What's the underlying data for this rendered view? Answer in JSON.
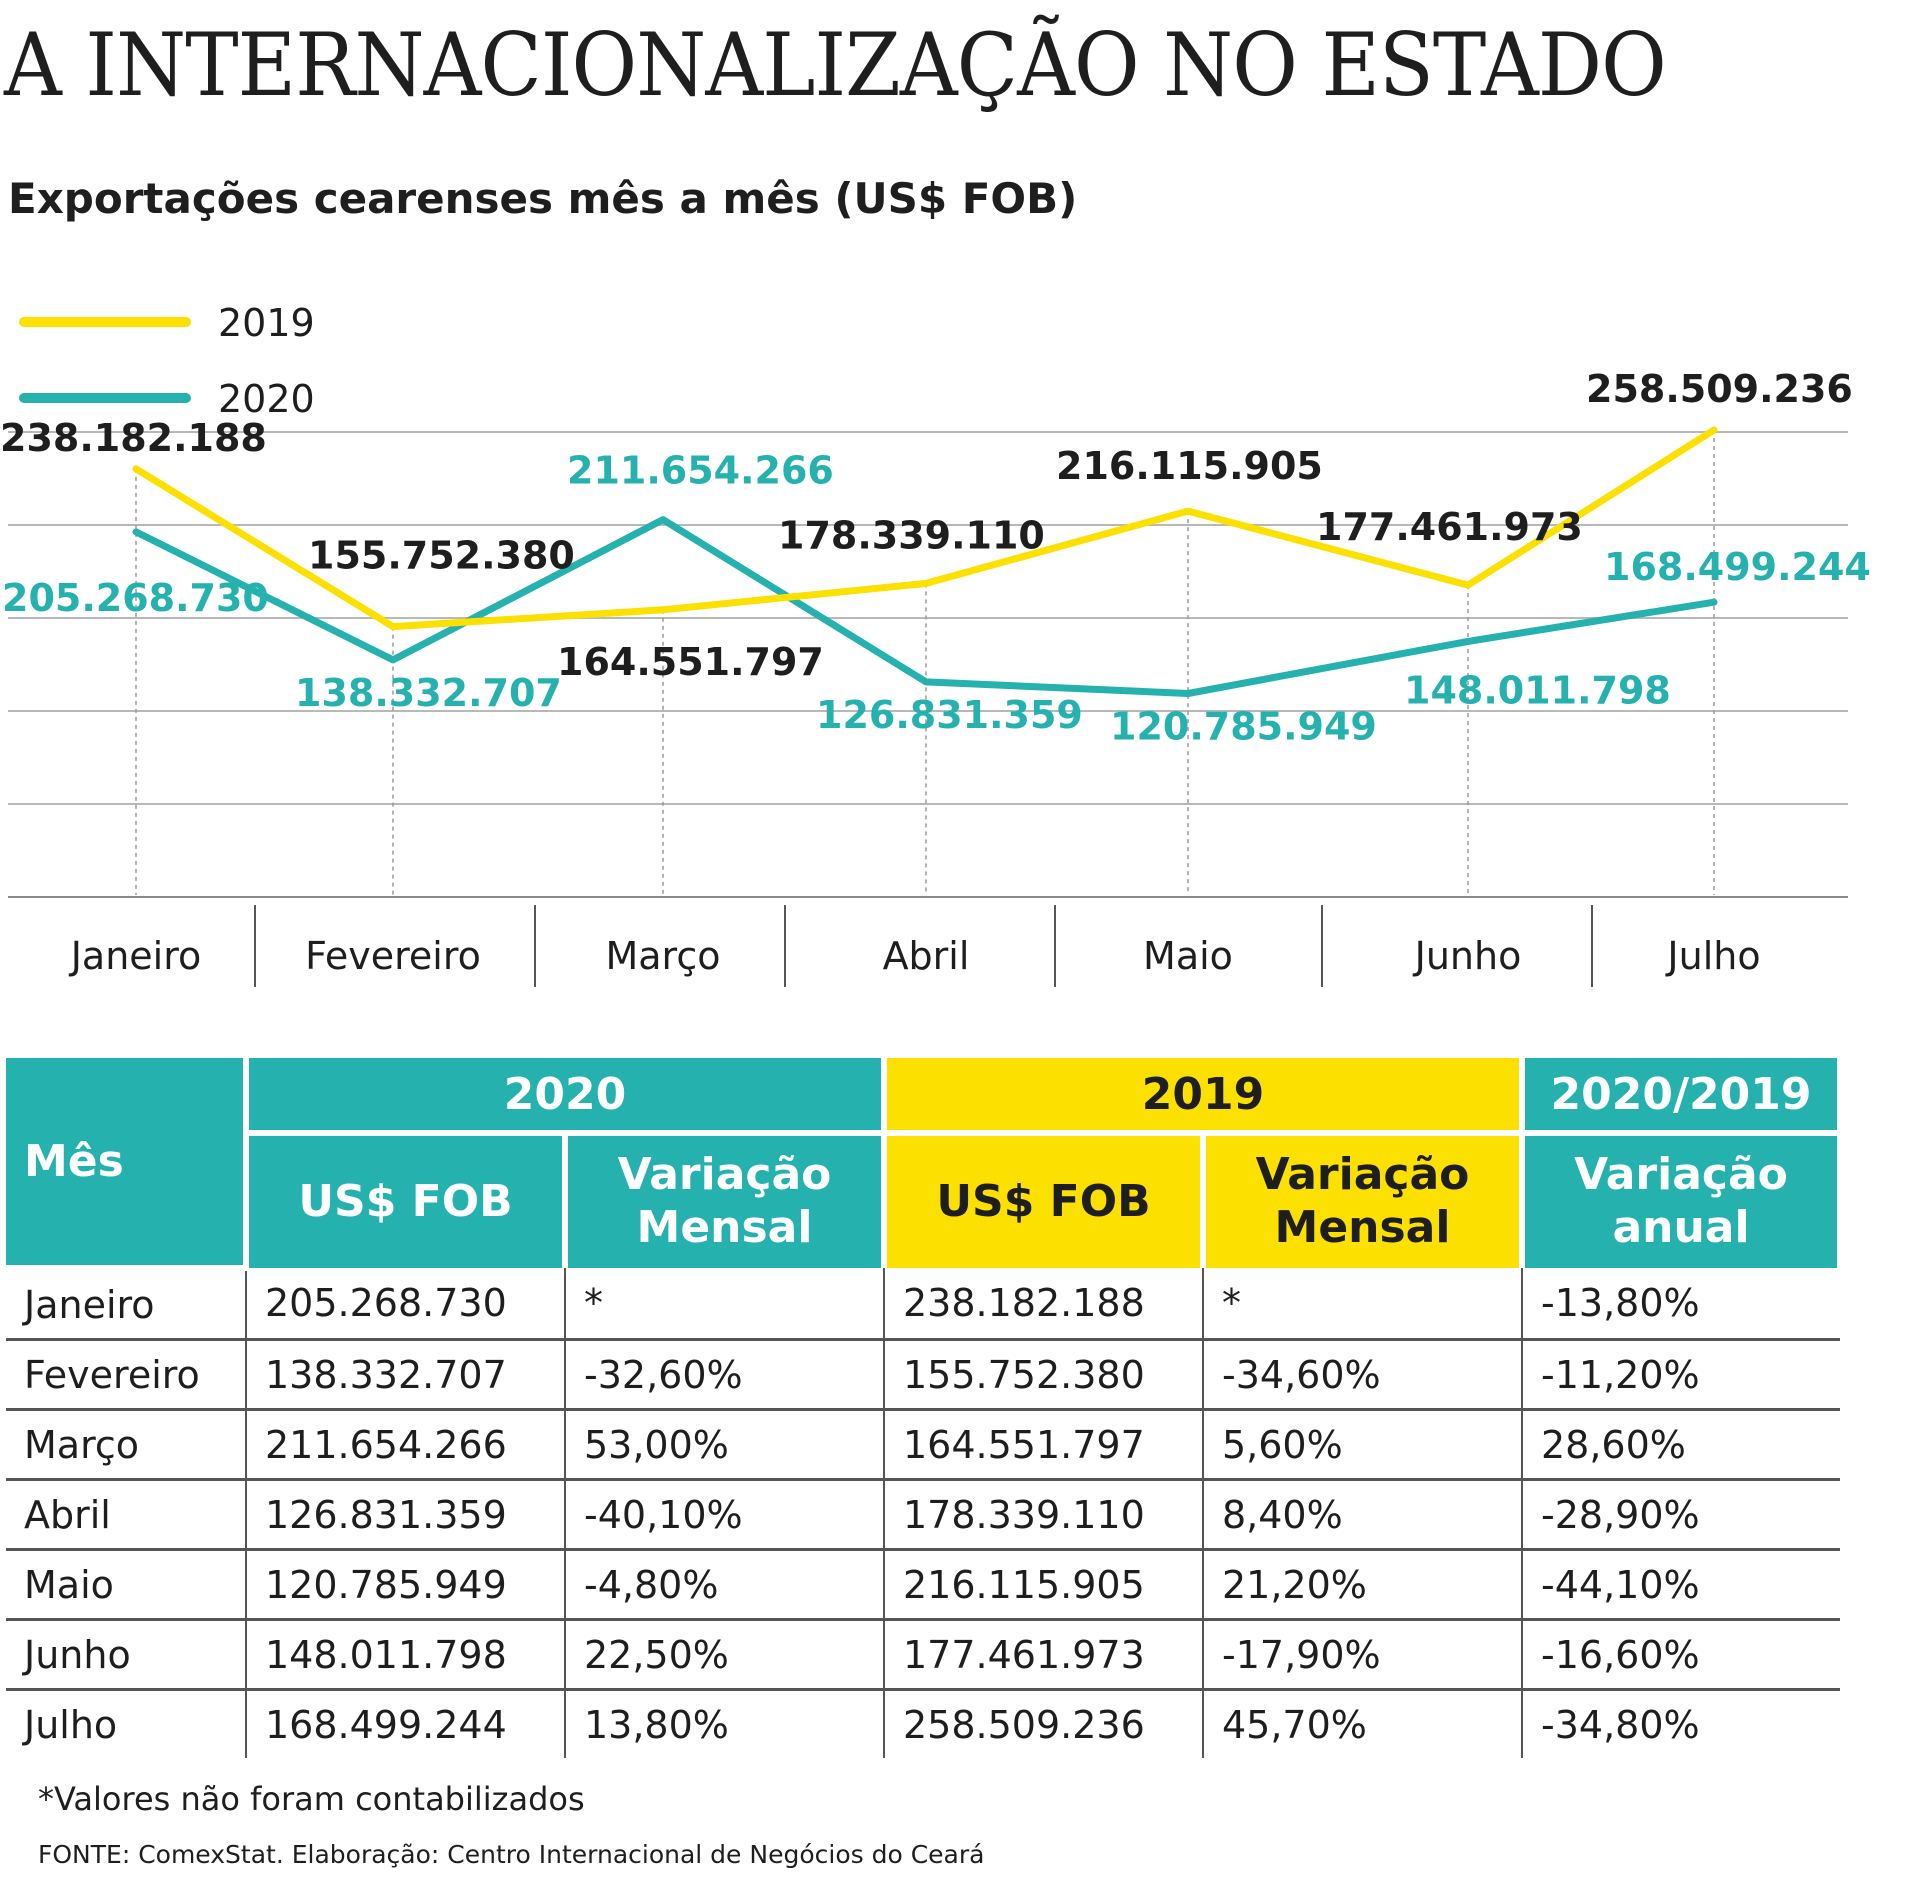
{
  "headline": "A INTERNACIONALIZAÇÃO NO ESTADO",
  "colors": {
    "y2019": "#fbe000",
    "y2020": "#25b1ad",
    "text": "#1e1e1e"
  },
  "chart_data": {
    "type": "line",
    "title": "Exportações cearenses mês a mês (US$ FOB)",
    "categories": [
      "Janeiro",
      "Fevereiro",
      "Março",
      "Abril",
      "Maio",
      "Junho",
      "Julho"
    ],
    "series": [
      {
        "name": "2019",
        "color": "#fbe000",
        "values": [
          238182188,
          155752380,
          164551797,
          178339110,
          216115905,
          177461973,
          258509236
        ],
        "labels": [
          "238.182.188",
          "155.752.380",
          "164.551.797",
          "178.339.110",
          "216.115.905",
          "177.461.973",
          "258.509.236"
        ]
      },
      {
        "name": "2020",
        "color": "#25b1ad",
        "values": [
          205268730,
          138332707,
          211654266,
          126831359,
          120785949,
          148011798,
          168499244
        ],
        "labels": [
          "205.268.730",
          "138.332.707",
          "211.654.266",
          "126.831.359",
          "120.785.949",
          "148.011.798",
          "168.499.244"
        ]
      }
    ],
    "ylim": [
      100000000,
      275000000
    ],
    "grid": true,
    "legend": "top-left",
    "xlabel": "",
    "ylabel": ""
  },
  "table": {
    "header": {
      "mes": "Mês",
      "group_2020": "2020",
      "group_2019": "2019",
      "group_ratio": "2020/2019",
      "usd_fob_2020": "US$ FOB",
      "var_mensal_2020": "Variação Mensal",
      "usd_fob_2019": "US$ FOB",
      "var_mensal_2019": "Variação Mensal",
      "var_anual": "Variação anual"
    },
    "rows": [
      {
        "mes": "Janeiro",
        "fob_2020": "205.268.730",
        "var_2020": "*",
        "fob_2019": "238.182.188",
        "var_2019": "*",
        "anual": "-13,80%"
      },
      {
        "mes": "Fevereiro",
        "fob_2020": "138.332.707",
        "var_2020": "-32,60%",
        "fob_2019": "155.752.380",
        "var_2019": "-34,60%",
        "anual": "-11,20%"
      },
      {
        "mes": "Março",
        "fob_2020": "211.654.266",
        "var_2020": "53,00%",
        "fob_2019": "164.551.797",
        "var_2019": "5,60%",
        "anual": "28,60%"
      },
      {
        "mes": "Abril",
        "fob_2020": "126.831.359",
        "var_2020": "-40,10%",
        "fob_2019": "178.339.110",
        "var_2019": "8,40%",
        "anual": "-28,90%"
      },
      {
        "mes": "Maio",
        "fob_2020": "120.785.949",
        "var_2020": "-4,80%",
        "fob_2019": "216.115.905",
        "var_2019": "21,20%",
        "anual": "-44,10%"
      },
      {
        "mes": "Junho",
        "fob_2020": "148.011.798",
        "var_2020": "22,50%",
        "fob_2019": "177.461.973",
        "var_2019": "-17,90%",
        "anual": "-16,60%"
      },
      {
        "mes": "Julho",
        "fob_2020": "168.499.244",
        "var_2020": "13,80%",
        "fob_2019": "258.509.236",
        "var_2019": "45,70%",
        "anual": "-34,80%"
      }
    ]
  },
  "footnote": "*Valores não foram contabilizados",
  "source": "FONTE: ComexStat. Elaboração: Centro Internacional de Negócios do Ceará"
}
